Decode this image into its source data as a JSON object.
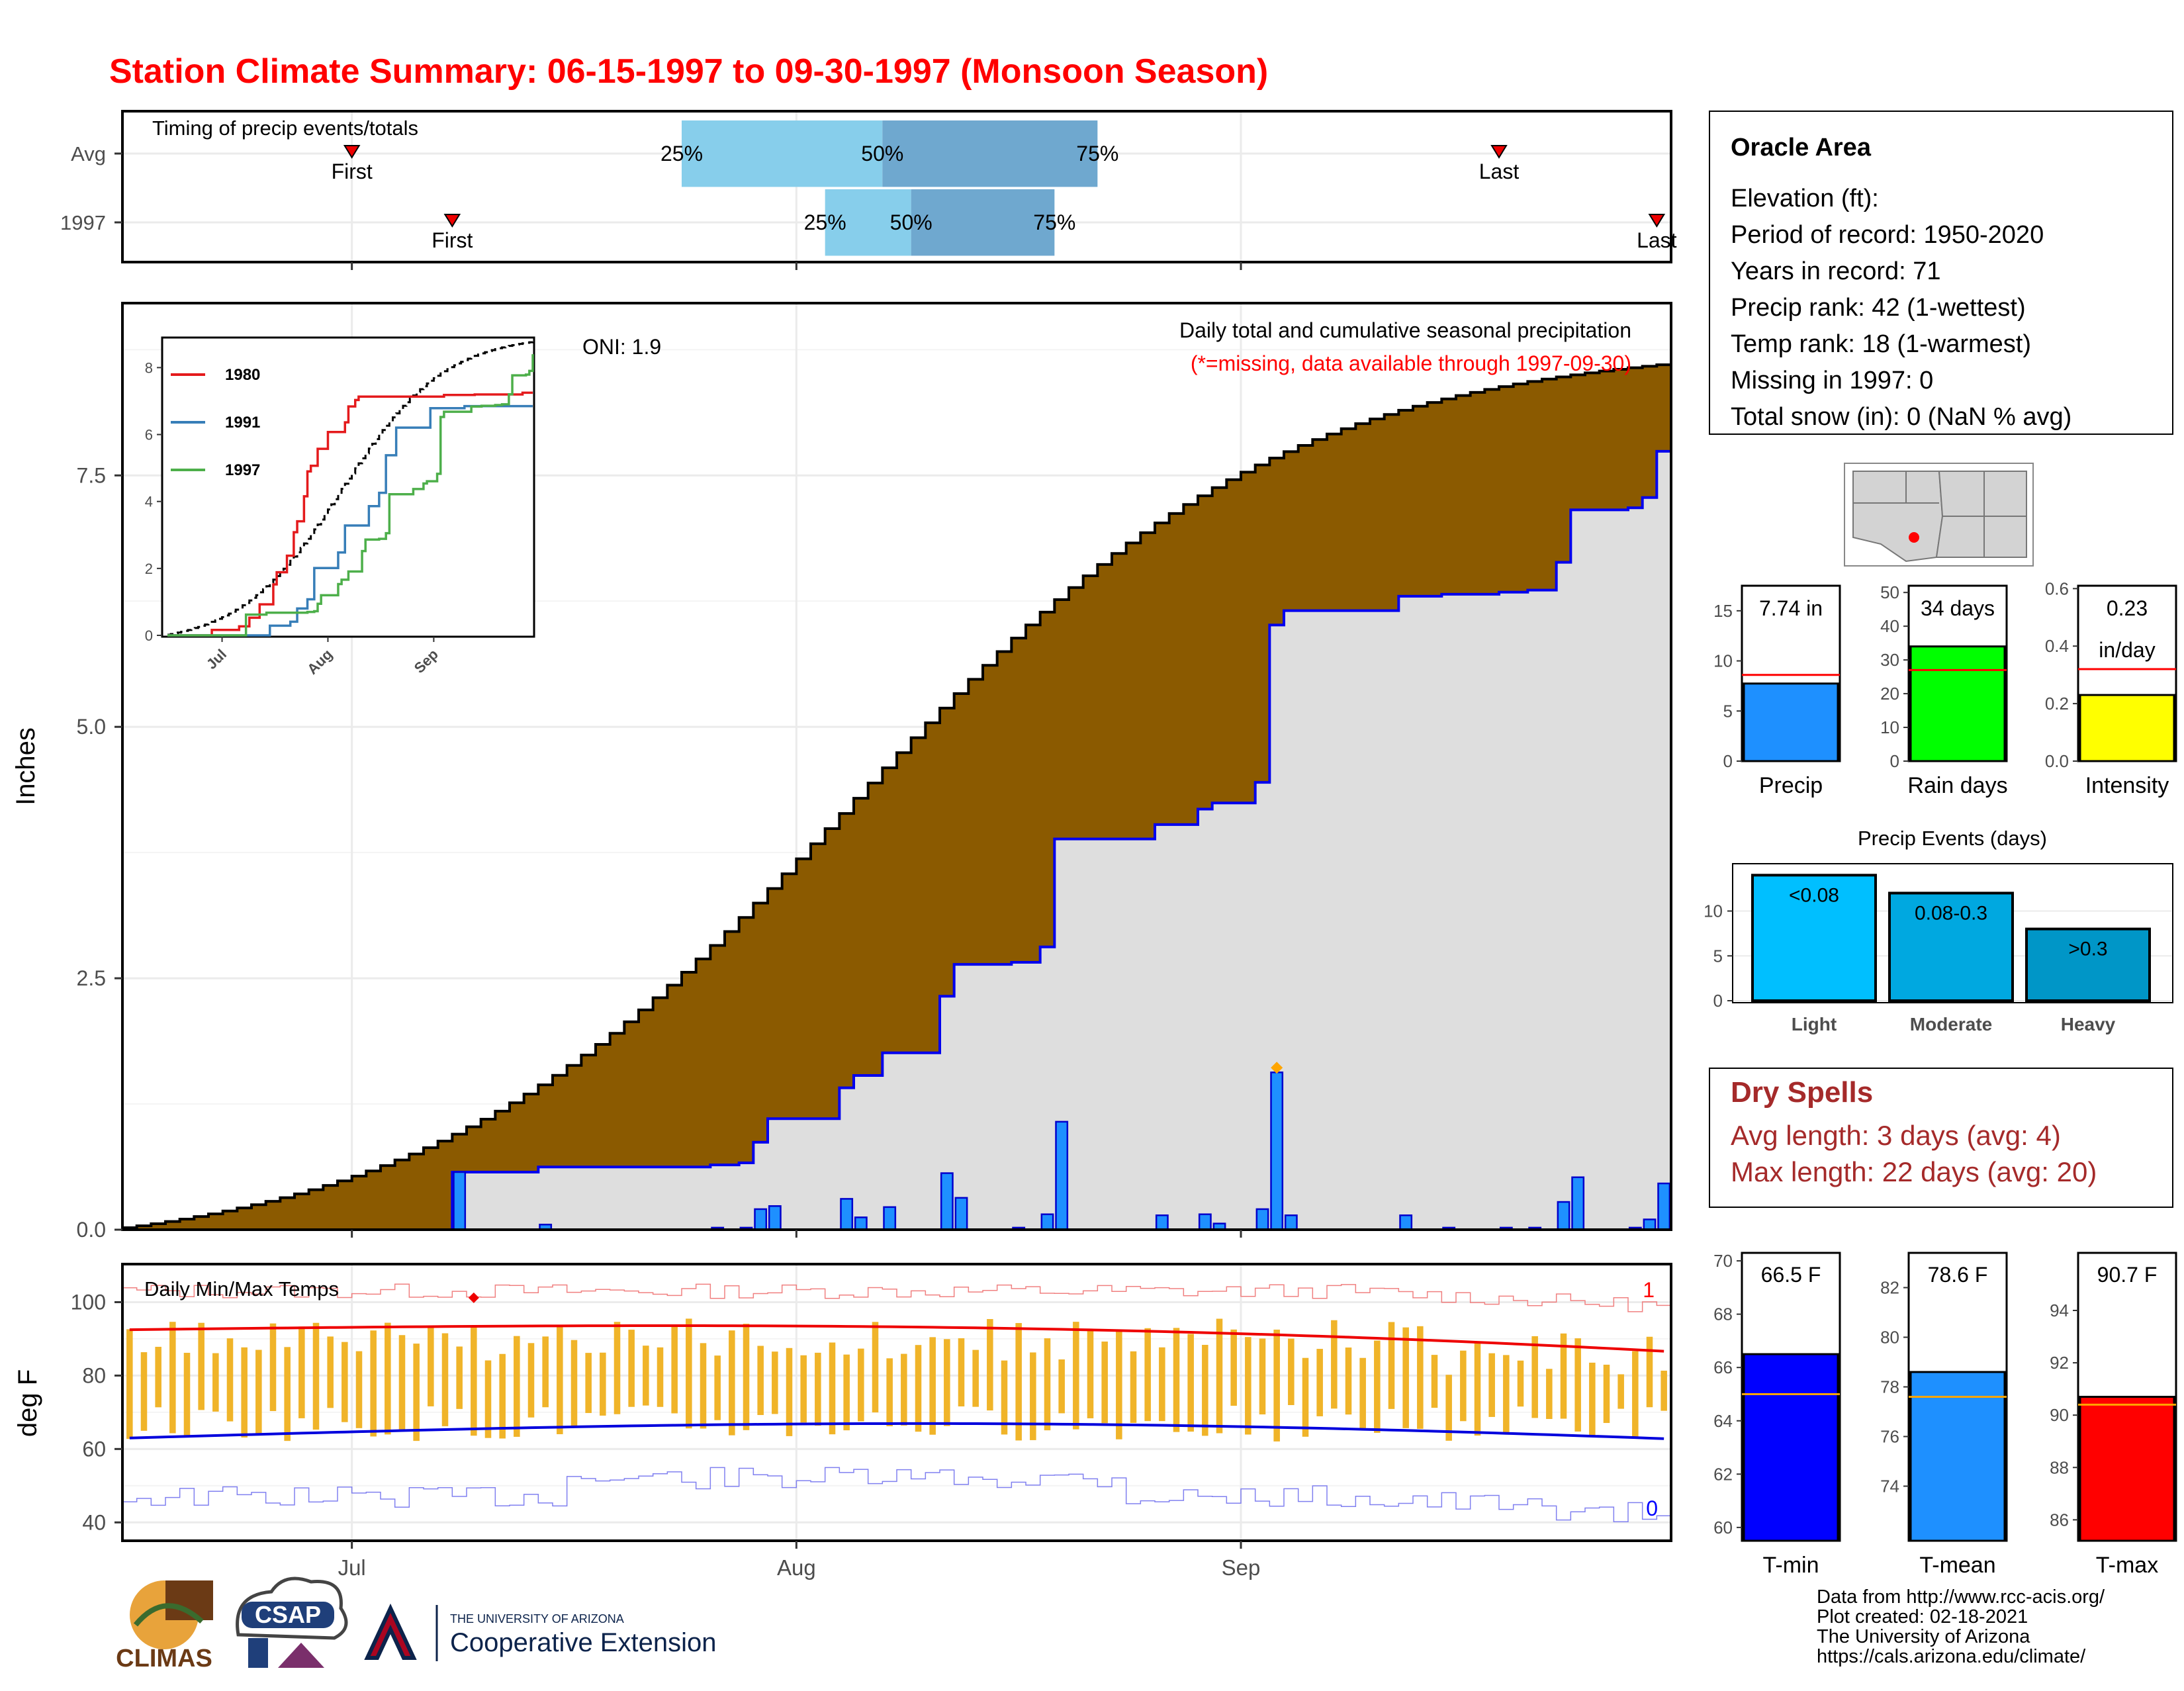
{
  "title": "Station Climate Summary: 06-15-1997 to 09-30-1997 (Monsoon Season)",
  "timing": {
    "caption": "Timing of precip events/totals",
    "rows": [
      {
        "label": "Avg",
        "first_date": "1997-07-01",
        "q25_date": "1997-07-24",
        "q50_date": "1997-08-07",
        "q75_date": "1997-08-22",
        "last_date": "1997-09-19",
        "first_label": "First",
        "last_label": "Last"
      },
      {
        "label": "1997",
        "first_date": "1997-07-08",
        "q25_date": "1997-08-03",
        "q50_date": "1997-08-09",
        "q75_date": "1997-08-19",
        "last_date": "1997-09-30",
        "first_label": "First",
        "last_label": "Last"
      }
    ],
    "pct_labels": [
      "25%",
      "50%",
      "75%"
    ]
  },
  "precip": {
    "ylabel": "Inches",
    "y_ticks": [
      "0.0",
      "2.5",
      "5.0",
      "7.5"
    ],
    "ylim": [
      0,
      9.2
    ],
    "oni": "ONI: 1.9",
    "legend_title": "Daily total and cumulative seasonal precipitation",
    "legend_note": "(*=missing, data available through 1997-09-30)",
    "x_ticks": [
      "Jul",
      "Aug",
      "Sep"
    ]
  },
  "inset": {
    "y_ticks": [
      "0",
      "2",
      "4",
      "6",
      "8"
    ],
    "x_ticks": [
      "Jul",
      "Aug",
      "Sep"
    ],
    "series": [
      {
        "name": "1980",
        "color": "#e41a1c"
      },
      {
        "name": "1991",
        "color": "#377eb8"
      },
      {
        "name": "1997",
        "color": "#4daf4a"
      }
    ]
  },
  "temps": {
    "caption": "Daily Min/Max Temps",
    "ylabel": "deg F",
    "y_ticks": [
      "40",
      "60",
      "80",
      "100"
    ],
    "ylim": [
      35,
      110
    ],
    "top_count": "1",
    "bottom_count": "0",
    "x_ticks": [
      "Jul",
      "Aug",
      "Sep"
    ]
  },
  "station": {
    "name": "Oracle Area",
    "lines": [
      "Elevation (ft):",
      "Period of record: 1950-2020",
      "Years in record: 71",
      "Precip rank: 42 (1-wettest)",
      "Temp rank: 18 (1-warmest)",
      "Missing in 1997: 0",
      "Total snow (in): 0 (NaN % avg)"
    ]
  },
  "mini_bars": [
    {
      "label": "Precip",
      "value": 7.74,
      "avg": 8.6,
      "value_label": "7.74 in",
      "ylim": [
        0,
        17.5
      ],
      "ticks": [
        "0",
        "5",
        "10",
        "15"
      ],
      "color": "#1e90ff"
    },
    {
      "label": "Rain days",
      "value": 34,
      "avg": 27,
      "value_label": "34 days",
      "ylim": [
        0,
        52
      ],
      "ticks": [
        "0",
        "10",
        "20",
        "30",
        "40",
        "50"
      ],
      "color": "#00ff00"
    },
    {
      "label": "Intensity",
      "value": 0.23,
      "avg": 0.32,
      "value_label": "0.23",
      "value_label2": "in/day",
      "ylim": [
        0,
        0.61
      ],
      "ticks": [
        "0.0",
        "0.2",
        "0.4",
        "0.6"
      ],
      "color": "#ffff00"
    }
  ],
  "events": {
    "title": "Precip Events (days)",
    "ticks": [
      "0",
      "5",
      "10"
    ],
    "bars": [
      {
        "label": "Light",
        "range": "<0.08",
        "value": 14,
        "color": "#00bfff"
      },
      {
        "label": "Moderate",
        "range": "0.08-0.3",
        "value": 12,
        "color": "#00a8e0"
      },
      {
        "label": "Heavy",
        "range": ">0.3",
        "value": 8,
        "color": "#0096c7"
      }
    ]
  },
  "dry_spells": {
    "title": "Dry Spells",
    "lines": [
      "Avg length: 3 days (avg: 4)",
      "Max length: 22 days (avg: 20)"
    ]
  },
  "temp_bars": [
    {
      "label": "T-min",
      "value": 66.5,
      "avg": 65.0,
      "value_label": "66.5 F",
      "ylim": [
        59.5,
        70.3
      ],
      "ticks": [
        "60",
        "62",
        "64",
        "66",
        "68",
        "70"
      ],
      "color": "#0000ff"
    },
    {
      "label": "T-mean",
      "value": 78.6,
      "avg": 77.6,
      "value_label": "78.6 F",
      "ylim": [
        71.8,
        83.4
      ],
      "ticks": [
        "74",
        "76",
        "78",
        "80",
        "82"
      ],
      "color": "#1e90ff"
    },
    {
      "label": "T-max",
      "value": 90.7,
      "avg": 90.4,
      "value_label": "90.7 F",
      "ylim": [
        85.2,
        96.2
      ],
      "ticks": [
        "86",
        "88",
        "90",
        "92",
        "94"
      ],
      "color": "#ff0000"
    }
  ],
  "footer": [
    "Data from http://www.rcc-acis.org/",
    "Plot created: 02-18-2021",
    "The University of Arizona",
    "https://cals.arizona.edu/climate/"
  ],
  "logos": {
    "climas": "CLIMAS",
    "csap": "CSAP",
    "ua_top": "THE UNIVERSITY OF ARIZONA",
    "ua_bottom": "Cooperative Extension"
  }
}
